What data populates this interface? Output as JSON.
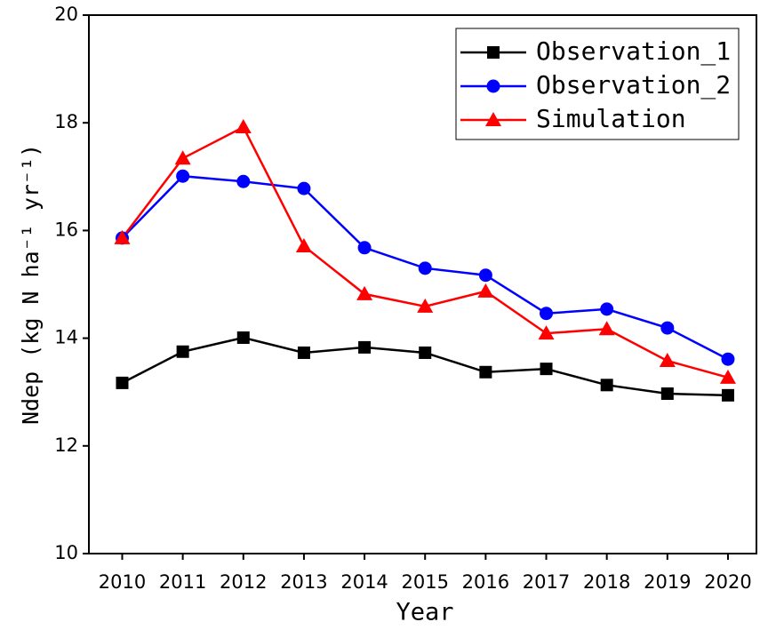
{
  "chart_data": {
    "type": "line",
    "xlabel": "Year",
    "ylabel": "Ndep (kg N ha⁻¹ yr⁻¹)",
    "x": [
      2010,
      2011,
      2012,
      2013,
      2014,
      2015,
      2016,
      2017,
      2018,
      2019,
      2020
    ],
    "series": [
      {
        "name": "Observation_1",
        "color": "#000000",
        "marker": "square",
        "values": [
          13.17,
          13.75,
          14.01,
          13.73,
          13.83,
          13.73,
          13.37,
          13.43,
          13.13,
          12.97,
          12.94
        ]
      },
      {
        "name": "Observation_2",
        "color": "#0000ff",
        "marker": "circle",
        "values": [
          15.86,
          17.01,
          16.91,
          16.78,
          15.68,
          15.3,
          15.17,
          14.46,
          14.54,
          14.19,
          13.61
        ]
      },
      {
        "name": "Simulation",
        "color": "#ff0000",
        "marker": "triangle",
        "values": [
          15.86,
          17.34,
          17.92,
          15.71,
          14.82,
          14.59,
          14.87,
          14.09,
          14.17,
          13.58,
          13.27
        ]
      }
    ],
    "xlim": [
      2009.45,
      2020.47
    ],
    "xticks": [
      2010,
      2011,
      2012,
      2013,
      2014,
      2015,
      2016,
      2017,
      2018,
      2019,
      2020
    ],
    "ylim": [
      10,
      20
    ],
    "yticks": [
      10,
      12,
      14,
      16,
      18,
      20
    ],
    "legend": "upper right",
    "grid": false
  }
}
